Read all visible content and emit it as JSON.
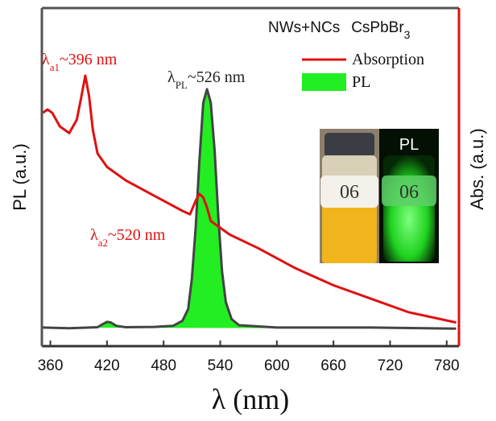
{
  "chart_data": {
    "type": "line",
    "title": {
      "main": "NWs+NCs",
      "compound": "CsPbBr",
      "compound_subscript": "3"
    },
    "x_label": "λ (nm)",
    "y_label": "PL (a.u.)",
    "y2_label": "Abs. (a.u.)",
    "xlim": [
      351,
      793
    ],
    "xticks": [
      360,
      420,
      480,
      540,
      600,
      660,
      720,
      780
    ],
    "ylim": [
      0,
      1
    ],
    "y2lim": [
      0,
      1
    ],
    "legend": "upper right",
    "series": [
      {
        "name": "Absorption",
        "color": "#e01010",
        "axis": "y2",
        "fill": false,
        "x": [
          352,
          357,
          362,
          370,
          380,
          388,
          393,
          397,
          401,
          405,
          410,
          420,
          440,
          460,
          480,
          500,
          508,
          514,
          518,
          522,
          526,
          530,
          540,
          550,
          580,
          620,
          660,
          700,
          740,
          790
        ],
        "values": [
          0.69,
          0.7,
          0.69,
          0.65,
          0.63,
          0.67,
          0.74,
          0.8,
          0.74,
          0.64,
          0.57,
          0.53,
          0.49,
          0.46,
          0.43,
          0.4,
          0.39,
          0.43,
          0.45,
          0.44,
          0.41,
          0.37,
          0.35,
          0.33,
          0.29,
          0.23,
          0.18,
          0.14,
          0.1,
          0.07
        ]
      },
      {
        "name": "PL",
        "color": "#22ee22",
        "outline": "#444444",
        "fill": true,
        "x": [
          352,
          380,
          410,
          416,
          420,
          424,
          430,
          440,
          470,
          490,
          500,
          506,
          510,
          514,
          518,
          522,
          526,
          530,
          534,
          538,
          542,
          546,
          552,
          560,
          600,
          700,
          790
        ],
        "values": [
          0.055,
          0.053,
          0.056,
          0.066,
          0.072,
          0.07,
          0.06,
          0.056,
          0.057,
          0.06,
          0.075,
          0.11,
          0.2,
          0.35,
          0.55,
          0.72,
          0.76,
          0.72,
          0.58,
          0.38,
          0.22,
          0.13,
          0.08,
          0.062,
          0.055,
          0.055,
          0.052
        ]
      }
    ],
    "annotations": [
      {
        "symbol": "λ",
        "subscript": "a1",
        "text": "~396 nm",
        "color": "#e01010"
      },
      {
        "symbol": "λ",
        "subscript": "PL",
        "text": "~526 nm",
        "color": "#222222"
      },
      {
        "symbol": "λ",
        "subscript": "a2",
        "text": "~520 nm",
        "color": "#e01010"
      }
    ],
    "inset": {
      "label": "PL",
      "vial_labels": [
        "06",
        "06"
      ]
    }
  }
}
